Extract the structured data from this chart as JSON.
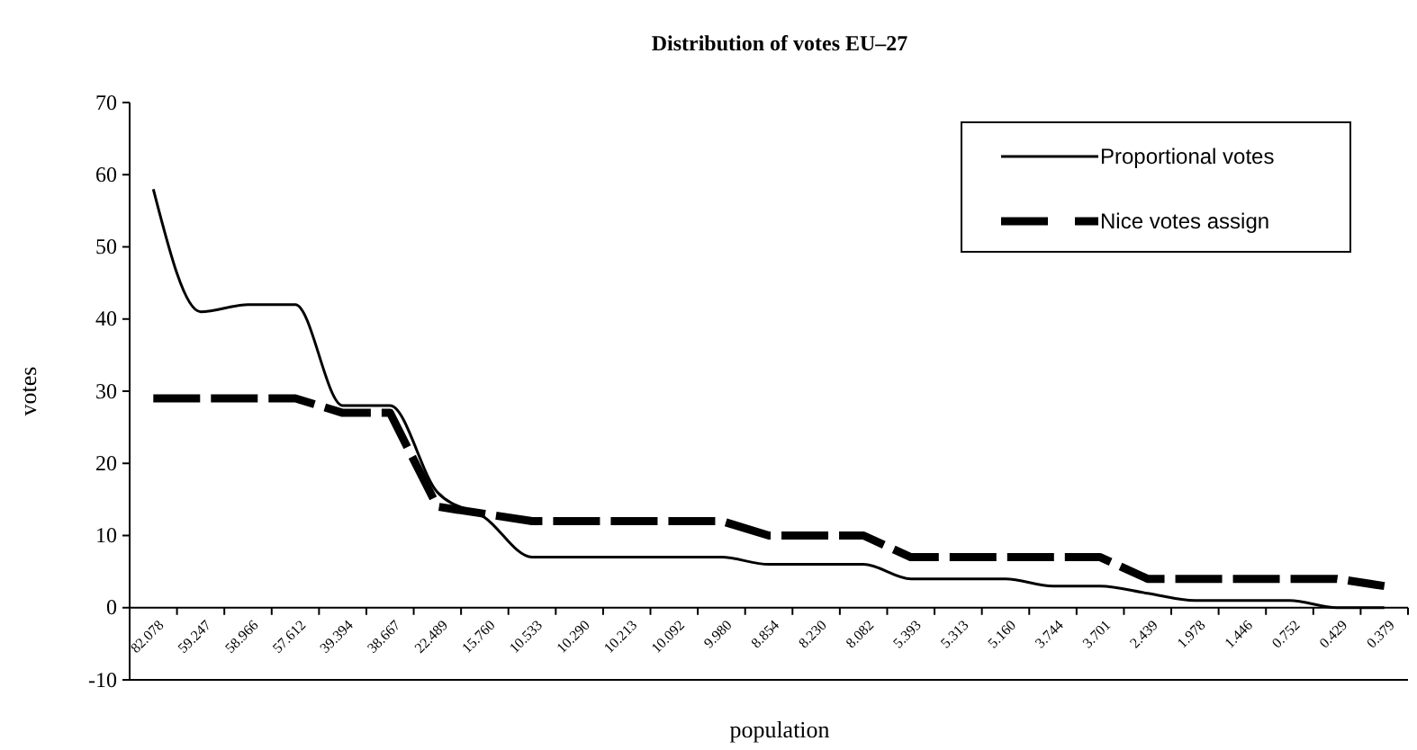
{
  "chart_data": {
    "type": "line",
    "title": "Distribution of votes EU–27",
    "xlabel": "population",
    "ylabel": "votes",
    "categories": [
      "82.078",
      "59.247",
      "58.966",
      "57.612",
      "39.394",
      "38.667",
      "22.489",
      "15.760",
      "10.533",
      "10.290",
      "10.213",
      "10.092",
      "9.980",
      "8.854",
      "8.230",
      "8.082",
      "5.393",
      "5.313",
      "5.160",
      "3.744",
      "3.701",
      "2.439",
      "1.978",
      "1.446",
      "0.752",
      "0.429",
      "0.379"
    ],
    "series": [
      {
        "name": "Proportional votes",
        "color": "#000000",
        "line_style": "solid",
        "values": [
          58,
          41,
          42,
          42,
          28,
          28,
          16,
          12.5,
          7,
          7,
          7,
          7,
          7,
          6,
          6,
          6,
          4,
          4,
          4,
          3,
          3,
          2,
          1,
          1,
          1,
          0,
          0
        ]
      },
      {
        "name": "Nice votes assign",
        "color": "#000000",
        "line_style": "dashed",
        "values": [
          29,
          29,
          29,
          29,
          27,
          27,
          14,
          13,
          12,
          12,
          12,
          12,
          12,
          10,
          10,
          10,
          7,
          7,
          7,
          7,
          7,
          4,
          4,
          4,
          4,
          4,
          3
        ]
      }
    ],
    "ylim": [
      -10,
      70
    ],
    "yticks": [
      -10,
      0,
      10,
      20,
      30,
      40,
      50,
      60,
      70
    ],
    "grid": false,
    "legend": "top right",
    "marker": "none"
  }
}
